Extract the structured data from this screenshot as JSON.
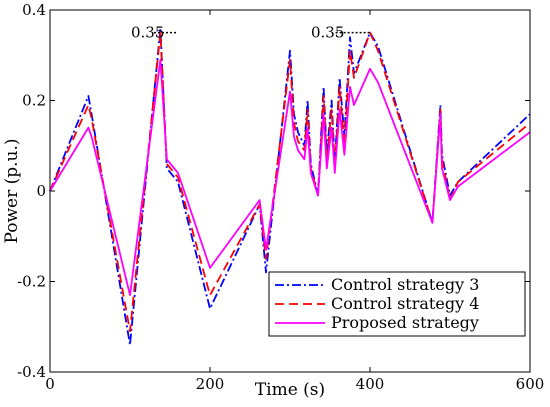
{
  "chart_data": {
    "type": "line",
    "title": "",
    "xlabel": "Time (s)",
    "ylabel": "Power (p.u.)",
    "xlim": [
      0,
      600
    ],
    "ylim": [
      -0.4,
      0.4
    ],
    "xticks": [
      0,
      200,
      400,
      600
    ],
    "xtick_labels": [
      "0",
      "200",
      "400",
      "600"
    ],
    "yticks": [
      -0.4,
      -0.2,
      0,
      0.2,
      0.4
    ],
    "ytick_labels": [
      "-0.4",
      "-0.2",
      "0",
      "0.2",
      "0.4"
    ],
    "grid": false,
    "legend_position": "bottom-right",
    "series": [
      {
        "name": "Control strategy 3",
        "color": "#0000ff",
        "dash": "dash-dot",
        "points": [
          [
            0,
            0
          ],
          [
            48,
            0.21
          ],
          [
            52,
            0.17
          ],
          [
            100,
            -0.34
          ],
          [
            138,
            0.36
          ],
          [
            146,
            0.05
          ],
          [
            160,
            0.02
          ],
          [
            200,
            -0.26
          ],
          [
            262,
            -0.03
          ],
          [
            270,
            -0.18
          ],
          [
            300,
            0.31
          ],
          [
            305,
            0.17
          ],
          [
            310,
            0.13
          ],
          [
            318,
            0.1
          ],
          [
            322,
            0.2
          ],
          [
            326,
            0.06
          ],
          [
            335,
            -0.01
          ],
          [
            342,
            0.23
          ],
          [
            346,
            0.08
          ],
          [
            352,
            0.2
          ],
          [
            356,
            0.06
          ],
          [
            362,
            0.25
          ],
          [
            368,
            0.12
          ],
          [
            375,
            0.34
          ],
          [
            380,
            0.26
          ],
          [
            400,
            0.35
          ],
          [
            410,
            0.32
          ],
          [
            478,
            -0.07
          ],
          [
            488,
            0.19
          ],
          [
            490,
            0.08
          ],
          [
            500,
            -0.01
          ],
          [
            510,
            0.02
          ],
          [
            600,
            0.17
          ]
        ]
      },
      {
        "name": "Control strategy 4",
        "color": "#ff0000",
        "dash": "dashed",
        "points": [
          [
            0,
            0
          ],
          [
            48,
            0.19
          ],
          [
            52,
            0.16
          ],
          [
            100,
            -0.31
          ],
          [
            138,
            0.35
          ],
          [
            146,
            0.06
          ],
          [
            160,
            0.03
          ],
          [
            200,
            -0.23
          ],
          [
            262,
            -0.03
          ],
          [
            270,
            -0.15
          ],
          [
            300,
            0.29
          ],
          [
            305,
            0.15
          ],
          [
            310,
            0.11
          ],
          [
            318,
            0.09
          ],
          [
            322,
            0.18
          ],
          [
            326,
            0.05
          ],
          [
            335,
            -0.01
          ],
          [
            342,
            0.21
          ],
          [
            346,
            0.07
          ],
          [
            352,
            0.18
          ],
          [
            356,
            0.05
          ],
          [
            362,
            0.23
          ],
          [
            368,
            0.1
          ],
          [
            375,
            0.31
          ],
          [
            380,
            0.25
          ],
          [
            400,
            0.35
          ],
          [
            410,
            0.31
          ],
          [
            478,
            -0.07
          ],
          [
            488,
            0.18
          ],
          [
            490,
            0.07
          ],
          [
            500,
            -0.02
          ],
          [
            510,
            0.02
          ],
          [
            600,
            0.15
          ]
        ]
      },
      {
        "name": "Proposed strategy",
        "color": "#ff00ff",
        "dash": "solid",
        "points": [
          [
            0,
            0
          ],
          [
            48,
            0.14
          ],
          [
            52,
            0.12
          ],
          [
            100,
            -0.23
          ],
          [
            138,
            0.29
          ],
          [
            146,
            0.07
          ],
          [
            160,
            0.04
          ],
          [
            200,
            -0.17
          ],
          [
            262,
            -0.02
          ],
          [
            270,
            -0.13
          ],
          [
            300,
            0.22
          ],
          [
            305,
            0.12
          ],
          [
            310,
            0.09
          ],
          [
            318,
            0.07
          ],
          [
            322,
            0.14
          ],
          [
            326,
            0.04
          ],
          [
            335,
            -0.01
          ],
          [
            342,
            0.17
          ],
          [
            346,
            0.05
          ],
          [
            352,
            0.14
          ],
          [
            356,
            0.04
          ],
          [
            362,
            0.18
          ],
          [
            368,
            0.08
          ],
          [
            375,
            0.23
          ],
          [
            380,
            0.19
          ],
          [
            400,
            0.27
          ],
          [
            410,
            0.24
          ],
          [
            478,
            -0.07
          ],
          [
            488,
            0.17
          ],
          [
            490,
            0.05
          ],
          [
            500,
            -0.02
          ],
          [
            510,
            0.01
          ],
          [
            600,
            0.13
          ]
        ]
      }
    ],
    "annotations": [
      {
        "text": "0.35",
        "x": 143,
        "y": 0.35,
        "line_from": 130,
        "line_to": 160
      },
      {
        "text": "0.35",
        "x": 368,
        "y": 0.35,
        "line_from": 357,
        "line_to": 400
      }
    ]
  }
}
